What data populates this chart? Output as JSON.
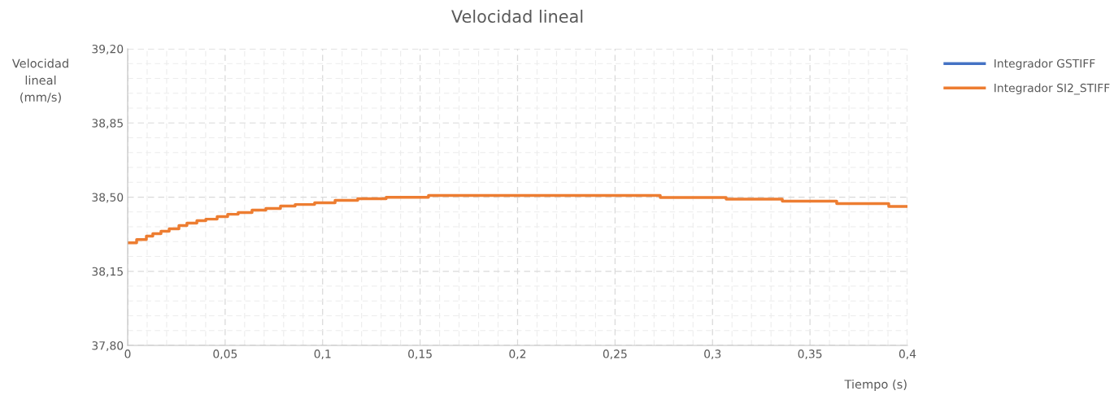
{
  "chart_data": {
    "type": "step",
    "title": "Velocidad lineal",
    "xlabel": "Tiempo (s)",
    "ylabel": "Velocidad\nlineal\n(mm/s)",
    "x": [
      0,
      0.0046,
      0.0096,
      0.0129,
      0.0171,
      0.0213,
      0.0263,
      0.0304,
      0.0355,
      0.0401,
      0.0459,
      0.0513,
      0.0567,
      0.0638,
      0.0709,
      0.0784,
      0.0859,
      0.0959,
      0.1064,
      0.118,
      0.1326,
      0.1543,
      0.2732,
      0.307,
      0.3358,
      0.3637,
      0.3904,
      0.4
    ],
    "series": [
      {
        "name": "Integrador GSTIFF",
        "color": "#4472c4",
        "values": [
          null,
          null,
          null,
          null,
          null,
          null,
          null,
          null,
          null,
          null,
          null,
          null,
          null,
          null,
          null,
          null,
          null,
          null,
          null,
          null,
          null,
          null,
          null,
          null,
          null,
          null,
          null,
          null
        ]
      },
      {
        "name": "Integrador SI2_STIFF",
        "color": "#ed7d31",
        "values": [
          38.284,
          38.3,
          38.316,
          38.327,
          38.339,
          38.35,
          38.366,
          38.377,
          38.389,
          38.396,
          38.408,
          38.419,
          38.427,
          38.439,
          38.446,
          38.458,
          38.465,
          38.473,
          38.485,
          38.492,
          38.499,
          38.508,
          38.498,
          38.49,
          38.481,
          38.469,
          38.456,
          38.456
        ]
      }
    ],
    "xlim": [
      0,
      0.4
    ],
    "xticks": [
      0,
      {
        "value": 0.05,
        "label": "0,05"
      },
      {
        "value": 0.1,
        "label": "0,1"
      },
      {
        "value": 0.15,
        "label": "0,15"
      },
      {
        "value": 0.2,
        "label": "0,2"
      },
      {
        "value": 0.25,
        "label": "0,25"
      },
      {
        "value": 0.3,
        "label": "0,3"
      },
      {
        "value": 0.35,
        "label": "0,35"
      },
      {
        "value": 0.4,
        "label": "0,4"
      }
    ],
    "ylim": [
      37.8,
      39.2
    ],
    "yticks": [
      {
        "value": 37.8,
        "label": "37,80"
      },
      {
        "value": 38.15,
        "label": "38,15"
      },
      {
        "value": 38.5,
        "label": "38,50"
      },
      {
        "value": 38.85,
        "label": "38,85"
      },
      {
        "value": 39.2,
        "label": "39,20"
      }
    ],
    "grid": true,
    "legend": "right",
    "line_style": "solid",
    "marker": "none"
  }
}
